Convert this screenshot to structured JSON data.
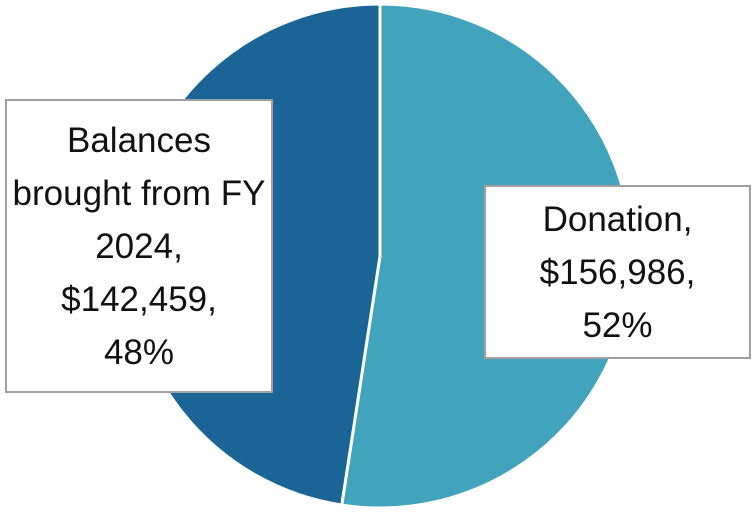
{
  "chart_data": {
    "type": "pie",
    "categories": [
      "Donation",
      "Balances brought from FY 2024"
    ],
    "values": [
      156986,
      142459
    ],
    "value_labels": [
      "$156,986",
      "$142,459"
    ],
    "percentages": [
      52,
      48
    ],
    "percentage_labels": [
      "52%",
      "48%"
    ],
    "label_separator": ",",
    "colors": [
      "#41a3bc",
      "#1a6496"
    ]
  }
}
